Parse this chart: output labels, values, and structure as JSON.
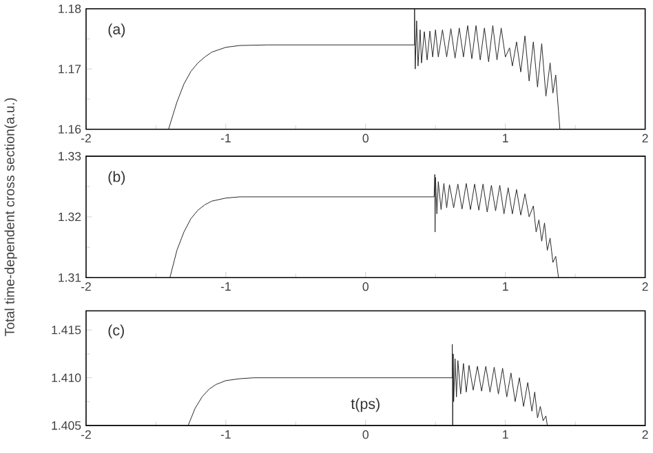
{
  "chart_data": [
    {
      "type": "line",
      "annotations": [
        "(a)"
      ],
      "xlim": [
        -2,
        2
      ],
      "xticks": [
        -2,
        -1,
        0,
        1,
        2
      ],
      "ylim": [
        1.16,
        1.18
      ],
      "yticks": [
        1.16,
        1.17,
        1.18
      ],
      "series": [
        {
          "color": "#222222",
          "x": [
            -1.41,
            -1.35,
            -1.3,
            -1.25,
            -1.2,
            -1.15,
            -1.1,
            -1.0,
            -0.9,
            -0.7,
            0.35,
            0.35,
            0.355,
            0.365,
            0.375,
            0.39,
            0.4,
            0.42,
            0.44,
            0.46,
            0.48,
            0.5,
            0.52,
            0.55,
            0.58,
            0.61,
            0.64,
            0.67,
            0.7,
            0.73,
            0.76,
            0.79,
            0.82,
            0.85,
            0.88,
            0.91,
            0.94,
            0.97,
            1.0,
            1.03,
            1.05,
            1.08,
            1.11,
            1.14,
            1.17,
            1.2,
            1.23,
            1.26,
            1.29,
            1.32,
            1.34,
            1.36,
            1.38,
            1.39
          ],
          "values": [
            1.16,
            1.1645,
            1.1675,
            1.1696,
            1.171,
            1.172,
            1.1728,
            1.1736,
            1.1739,
            1.174,
            1.174,
            1.18,
            1.17,
            1.178,
            1.1705,
            1.1765,
            1.171,
            1.1762,
            1.1715,
            1.1763,
            1.172,
            1.1765,
            1.172,
            1.1765,
            1.172,
            1.1767,
            1.1718,
            1.1768,
            1.172,
            1.1772,
            1.1717,
            1.1772,
            1.1715,
            1.1768,
            1.1712,
            1.1772,
            1.1715,
            1.1768,
            1.172,
            1.1735,
            1.1705,
            1.1745,
            1.1695,
            1.1755,
            1.168,
            1.1745,
            1.167,
            1.1742,
            1.1655,
            1.171,
            1.166,
            1.169,
            1.163,
            1.16
          ]
        }
      ]
    },
    {
      "type": "line",
      "annotations": [
        "(b)"
      ],
      "ylabel": "Total time-dependent cross section(a.u.)",
      "xlim": [
        -2,
        2
      ],
      "xticks": [
        -2,
        -1,
        0,
        1,
        2
      ],
      "ylim": [
        1.31,
        1.33
      ],
      "yticks": [
        1.31,
        1.32,
        1.33
      ],
      "series": [
        {
          "color": "#222222",
          "x": [
            -1.4,
            -1.35,
            -1.3,
            -1.25,
            -1.2,
            -1.15,
            -1.1,
            -1.0,
            -0.9,
            -0.7,
            0.49,
            0.495,
            0.497,
            0.5,
            0.51,
            0.52,
            0.54,
            0.56,
            0.58,
            0.6,
            0.63,
            0.66,
            0.69,
            0.72,
            0.75,
            0.78,
            0.81,
            0.84,
            0.87,
            0.9,
            0.93,
            0.96,
            0.99,
            1.02,
            1.05,
            1.08,
            1.11,
            1.14,
            1.17,
            1.2,
            1.22,
            1.24,
            1.26,
            1.28,
            1.3,
            1.32,
            1.34,
            1.36,
            1.38
          ],
          "values": [
            1.31,
            1.3145,
            1.3175,
            1.3197,
            1.3211,
            1.322,
            1.3226,
            1.3231,
            1.3233,
            1.3233,
            1.3233,
            1.327,
            1.3175,
            1.3265,
            1.3205,
            1.3258,
            1.3212,
            1.3255,
            1.3215,
            1.3253,
            1.3215,
            1.3254,
            1.3213,
            1.3255,
            1.3212,
            1.3254,
            1.3211,
            1.3254,
            1.3208,
            1.3252,
            1.321,
            1.3252,
            1.3205,
            1.3248,
            1.3205,
            1.3245,
            1.3203,
            1.3238,
            1.32,
            1.3218,
            1.3175,
            1.3195,
            1.316,
            1.319,
            1.3145,
            1.3165,
            1.3125,
            1.3135,
            1.31
          ]
        }
      ]
    },
    {
      "type": "line",
      "annotations": [
        "(c)"
      ],
      "xlabel": "t(ps)",
      "xlim": [
        -2,
        2
      ],
      "xticks": [
        -2,
        -1,
        0,
        1,
        2
      ],
      "ylim": [
        1.405,
        1.417
      ],
      "yticks": [
        1.405,
        {
          "value": 1.41,
          "label": "1.410"
        },
        1.415
      ],
      "series": [
        {
          "color": "#222222",
          "x": [
            -1.27,
            -1.22,
            -1.17,
            -1.12,
            -1.07,
            -1.0,
            -0.9,
            -0.8,
            -0.6,
            0.62,
            0.62,
            0.623,
            0.627,
            0.63,
            0.64,
            0.65,
            0.66,
            0.68,
            0.7,
            0.72,
            0.74,
            0.77,
            0.8,
            0.83,
            0.86,
            0.89,
            0.92,
            0.95,
            0.98,
            1.01,
            1.04,
            1.07,
            1.1,
            1.13,
            1.16,
            1.19,
            1.21,
            1.23,
            1.25,
            1.27,
            1.29,
            1.3
          ],
          "values": [
            1.405,
            1.4068,
            1.408,
            1.4088,
            1.4093,
            1.4097,
            1.4099,
            1.41,
            1.41,
            1.41,
            1.4135,
            1.405,
            1.4125,
            1.4075,
            1.412,
            1.408,
            1.4118,
            1.4083,
            1.4115,
            1.4085,
            1.4113,
            1.4087,
            1.4112,
            1.4086,
            1.4112,
            1.4085,
            1.4111,
            1.4083,
            1.411,
            1.408,
            1.4105,
            1.4075,
            1.41,
            1.407,
            1.4095,
            1.4065,
            1.4085,
            1.4058,
            1.407,
            1.4055,
            1.406,
            1.405
          ]
        }
      ]
    }
  ]
}
